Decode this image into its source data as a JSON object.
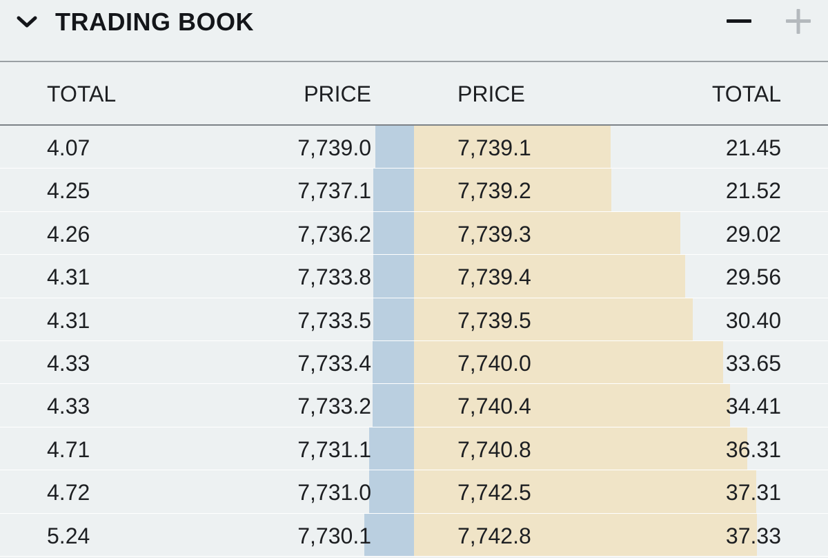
{
  "header": {
    "title": "TRADING BOOK",
    "collapse_icon": "chevron-down-icon",
    "minus_icon": "minus-icon",
    "plus_icon": "plus-icon"
  },
  "columns": {
    "bid_total": "TOTAL",
    "bid_price": "PRICE",
    "ask_price": "PRICE",
    "ask_total": "TOTAL"
  },
  "colors": {
    "background": "#edf1f2",
    "bid_depth": "#bacfe0",
    "ask_depth": "#f0e4c7",
    "plus_disabled": "#b4b9bd"
  },
  "rows": [
    {
      "bid_total": "4.07",
      "bid_price": "7,739.0",
      "ask_price": "7,739.1",
      "ask_total": "21.45"
    },
    {
      "bid_total": "4.25",
      "bid_price": "7,737.1",
      "ask_price": "7,739.2",
      "ask_total": "21.52"
    },
    {
      "bid_total": "4.26",
      "bid_price": "7,736.2",
      "ask_price": "7,739.3",
      "ask_total": "29.02"
    },
    {
      "bid_total": "4.31",
      "bid_price": "7,733.8",
      "ask_price": "7,739.4",
      "ask_total": "29.56"
    },
    {
      "bid_total": "4.31",
      "bid_price": "7,733.5",
      "ask_price": "7,739.5",
      "ask_total": "30.40"
    },
    {
      "bid_total": "4.33",
      "bid_price": "7,733.4",
      "ask_price": "7,740.0",
      "ask_total": "33.65"
    },
    {
      "bid_total": "4.33",
      "bid_price": "7,733.2",
      "ask_price": "7,740.4",
      "ask_total": "34.41"
    },
    {
      "bid_total": "4.71",
      "bid_price": "7,731.1",
      "ask_price": "7,740.8",
      "ask_total": "36.31"
    },
    {
      "bid_total": "4.72",
      "bid_price": "7,731.0",
      "ask_price": "7,742.5",
      "ask_total": "37.31"
    },
    {
      "bid_total": "5.24",
      "bid_price": "7,730.1",
      "ask_price": "7,742.8",
      "ask_total": "37.33"
    }
  ]
}
